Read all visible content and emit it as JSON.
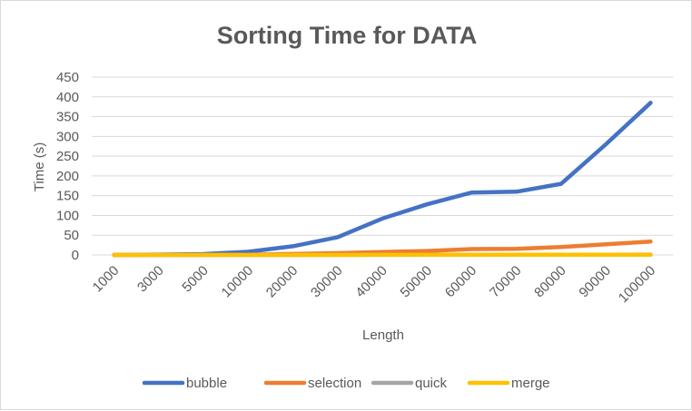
{
  "chart_data": {
    "type": "line",
    "title": "Sorting Time for DATA",
    "xlabel": "Length",
    "ylabel": "Time (s)",
    "categories": [
      "1000",
      "3000",
      "5000",
      "10000",
      "20000",
      "30000",
      "40000",
      "50000",
      "60000",
      "70000",
      "80000",
      "90000",
      "100000"
    ],
    "ylim": [
      0,
      450
    ],
    "yticks": [
      0,
      50,
      100,
      150,
      200,
      250,
      300,
      350,
      400,
      450
    ],
    "grid": true,
    "legend_position": "bottom",
    "series": [
      {
        "name": "bubble",
        "color": "#4472C4",
        "values": [
          0.1,
          0.9,
          2.4,
          8,
          22,
          45,
          92,
          128,
          158,
          160,
          180,
          280,
          385
        ]
      },
      {
        "name": "selection",
        "color": "#ED7D31",
        "values": [
          0,
          0.1,
          0.2,
          0.8,
          2.5,
          4.5,
          7.5,
          10,
          15,
          15.5,
          20,
          27,
          34
        ]
      },
      {
        "name": "quick",
        "color": "#A5A5A5",
        "values": [
          0,
          0,
          0,
          0,
          0.1,
          0.2,
          0.3,
          0.4,
          0.5,
          0.6,
          0.7,
          0.8,
          1
        ]
      },
      {
        "name": "merge",
        "color": "#FFC000",
        "values": [
          0,
          0,
          0,
          0,
          0.1,
          0.1,
          0.2,
          0.3,
          0.3,
          0.4,
          0.5,
          0.5,
          0.6
        ]
      }
    ]
  }
}
